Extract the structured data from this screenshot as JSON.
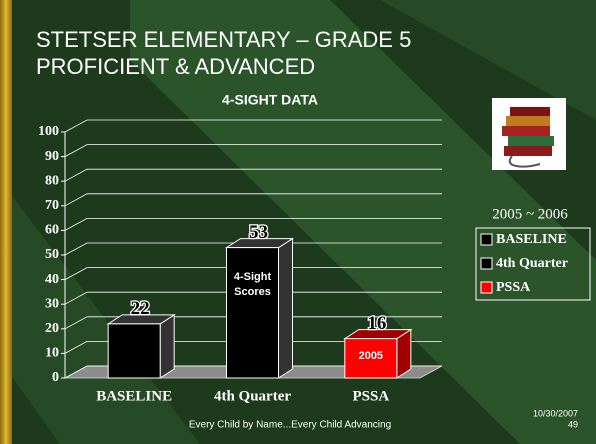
{
  "slide": {
    "title_lines": [
      "STETSER ELEMENTARY – GRADE 5",
      "PROFICIENT & ADVANCED"
    ],
    "footer": "Every Child by Name...Every Child Advancing",
    "date": "10/30/2007",
    "page_number": 49
  },
  "chart_data": {
    "type": "bar",
    "title": "4-SIGHT DATA",
    "categories": [
      "BASELINE",
      "4th Quarter",
      "PSSA"
    ],
    "values": [
      22,
      53,
      16
    ],
    "colors": [
      "#000000",
      "#000000",
      "#ff0000"
    ],
    "ylim": [
      0,
      100
    ],
    "yticks": [
      0,
      10,
      20,
      30,
      40,
      50,
      60,
      70,
      80,
      90,
      100
    ],
    "grid": true,
    "legend_title": "2005 ~ 2006",
    "legend": "right",
    "annotations": [
      {
        "category": "4th Quarter",
        "lines": [
          "4-Sight",
          "Scores"
        ]
      },
      {
        "category": "PSSA",
        "lines": [
          "2005"
        ]
      }
    ]
  }
}
